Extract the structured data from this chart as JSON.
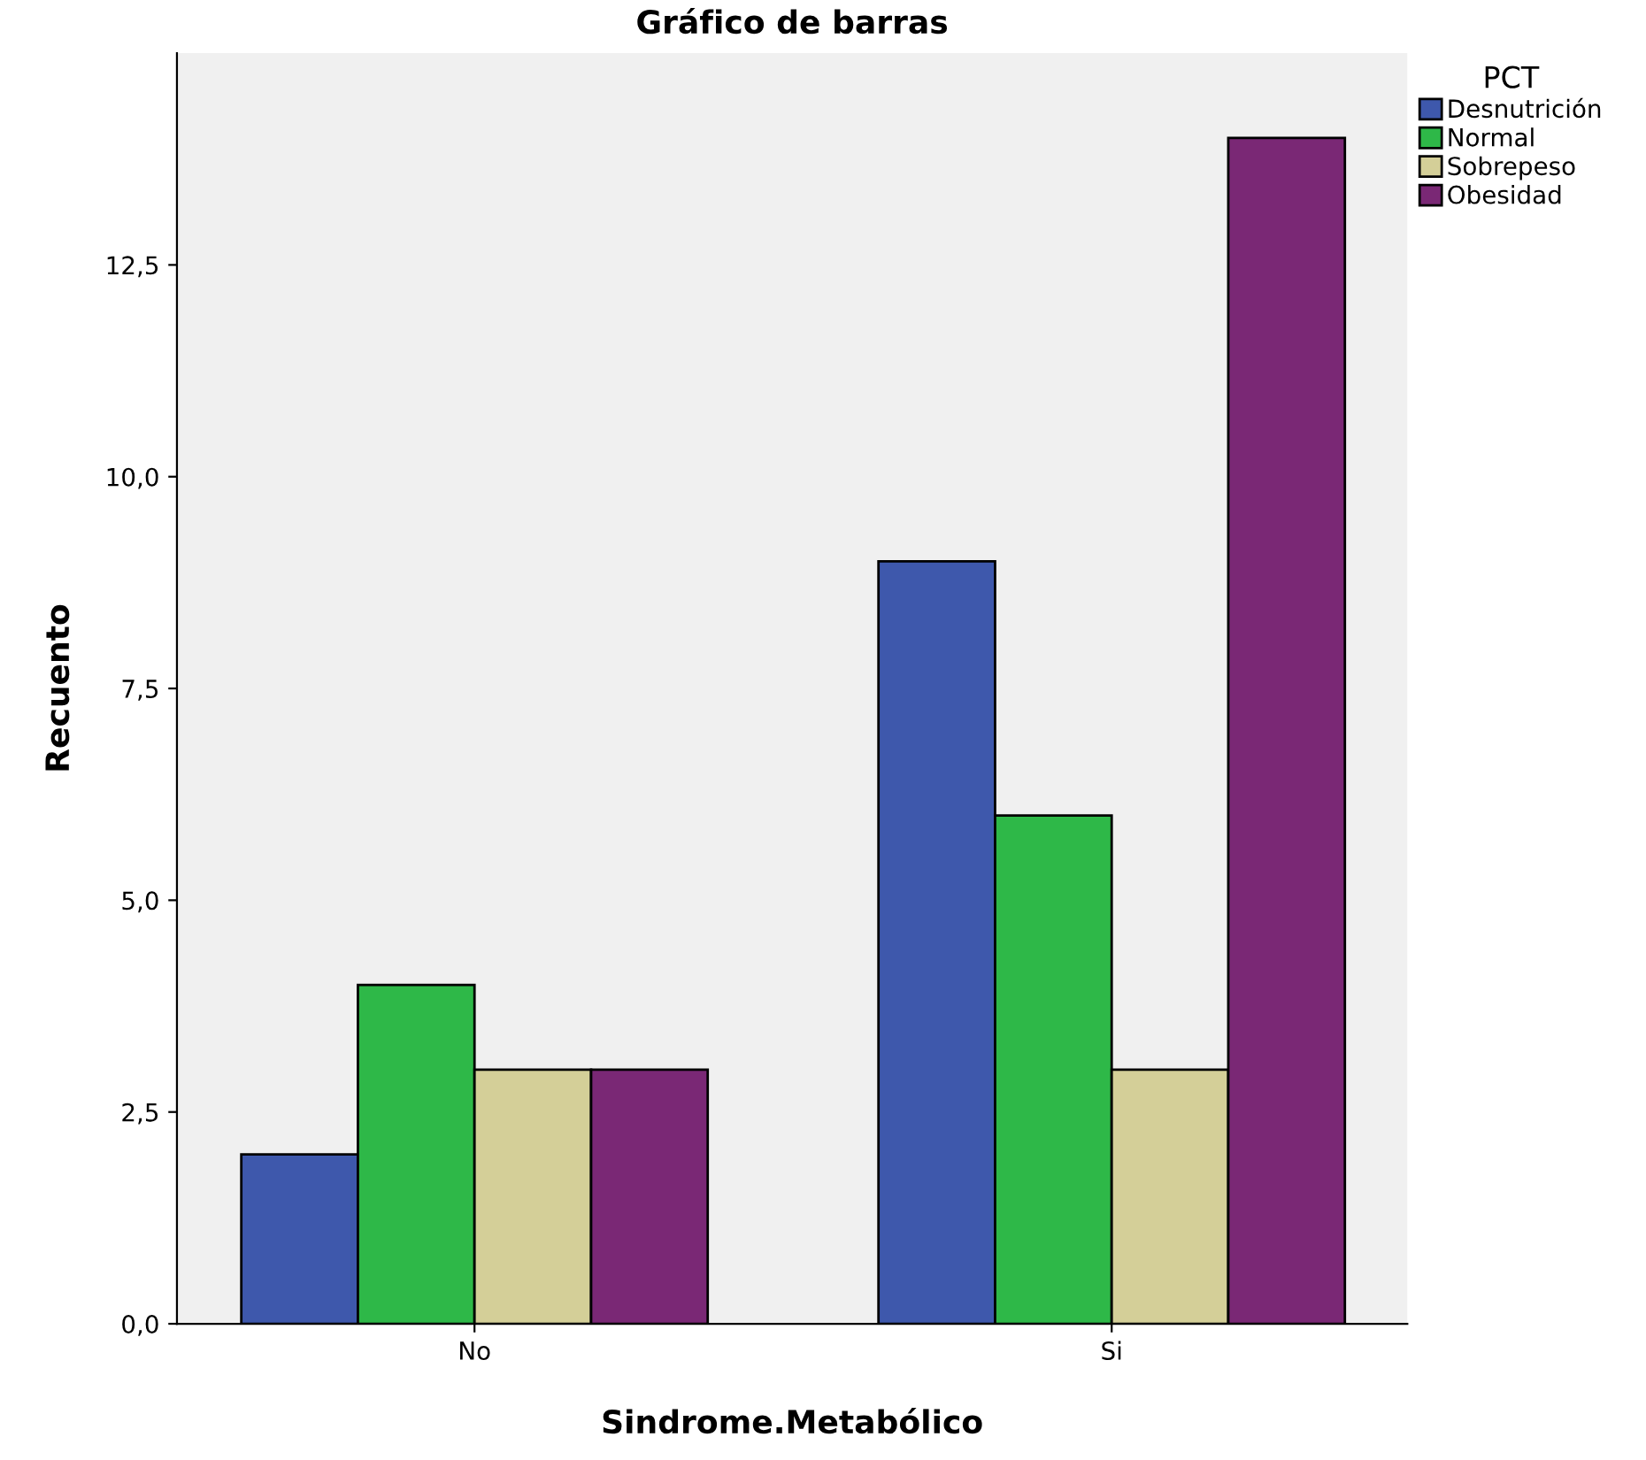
{
  "chart_data": {
    "type": "bar",
    "title": "Gráfico de barras",
    "xlabel": "Sindrome.Metabólico",
    "ylabel": "Recuento",
    "legend_title": "PCT",
    "categories": [
      "No",
      "Si"
    ],
    "series": [
      {
        "name": "Desnutrición",
        "color": "#3e58ac",
        "values": [
          2,
          9
        ]
      },
      {
        "name": "Normal",
        "color": "#2eb848",
        "values": [
          4,
          6
        ]
      },
      {
        "name": "Sobrepeso",
        "color": "#d4cf98",
        "values": [
          3,
          3
        ]
      },
      {
        "name": "Obesidad",
        "color": "#7a2875",
        "values": [
          3,
          14
        ]
      }
    ],
    "ylim": [
      0,
      15
    ],
    "yticks": [
      {
        "value": 0,
        "label": "0,0"
      },
      {
        "value": 2.5,
        "label": "2,5"
      },
      {
        "value": 5,
        "label": "5,0"
      },
      {
        "value": 7.5,
        "label": "7,5"
      },
      {
        "value": 10,
        "label": "10,0"
      },
      {
        "value": 12.5,
        "label": "12,5"
      }
    ],
    "grid": false,
    "legend": "top right"
  }
}
